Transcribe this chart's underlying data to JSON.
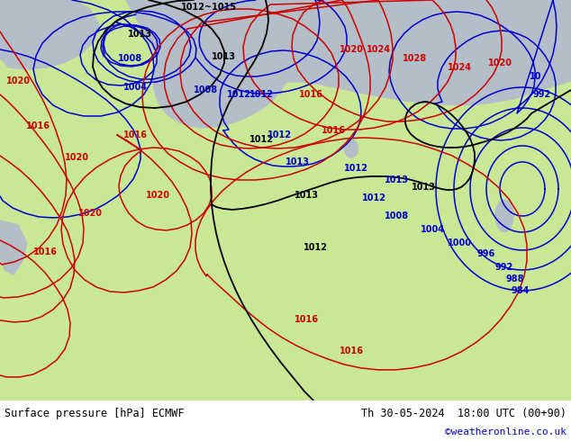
{
  "title_left": "Surface pressure [hPa] ECMWF",
  "title_right": "Th 30-05-2024  18:00 UTC (00+90)",
  "credit": "©weatheronline.co.uk",
  "land_color": "#c8e896",
  "sea_color": "#c8ccd8",
  "footer_bg": "#ffffff",
  "credit_color": "#0000cc",
  "fig_width": 6.34,
  "fig_height": 4.9,
  "dpi": 100
}
